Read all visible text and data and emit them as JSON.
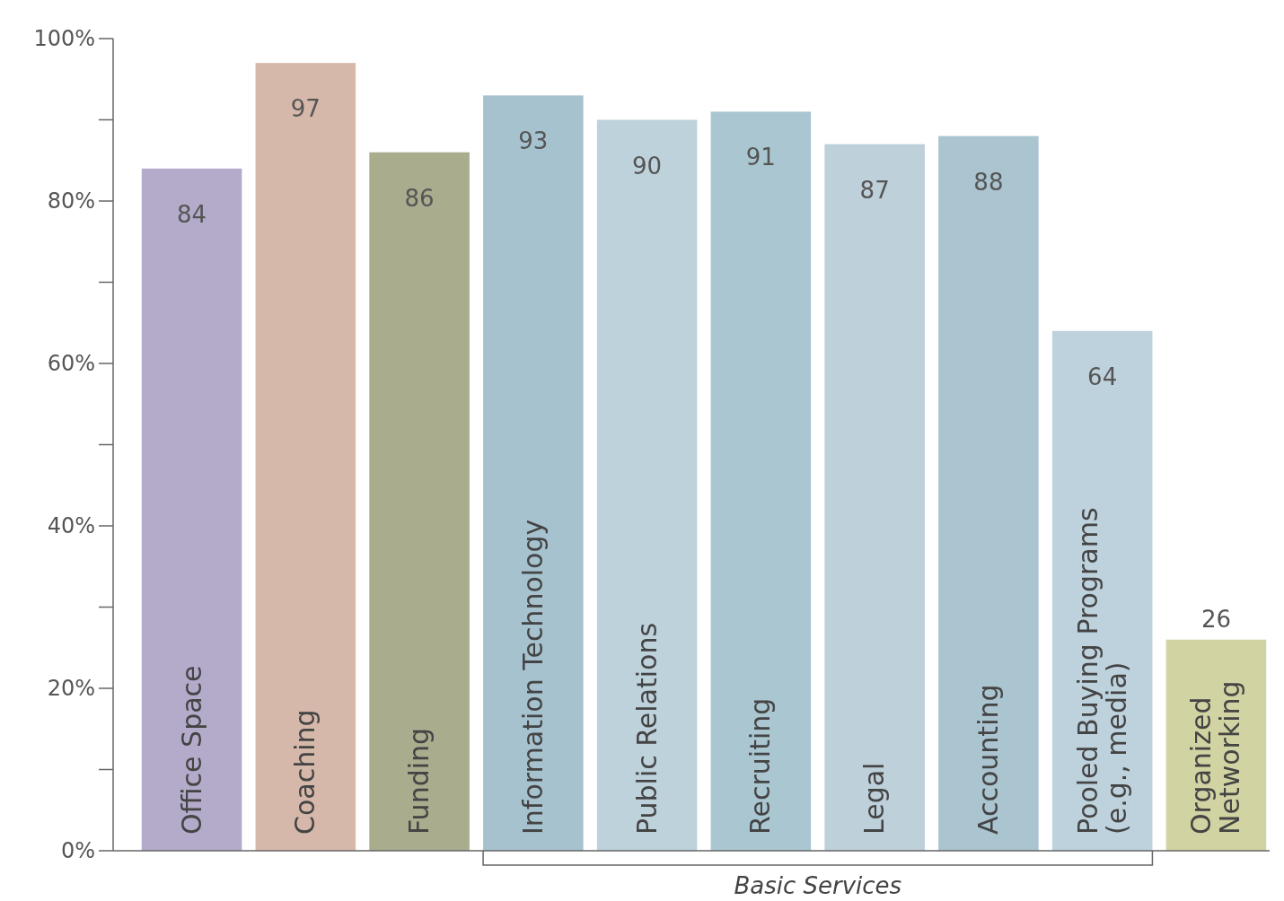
{
  "chart_data": {
    "type": "bar",
    "categories": [
      "Office Space",
      "Coaching",
      "Funding",
      "Information Technology",
      "Public Relations",
      "Recruiting",
      "Legal",
      "Accounting",
      "Pooled Buying Programs\n(e.g., media)",
      "Organized\nNetworking"
    ],
    "values": [
      84,
      97,
      86,
      93,
      90,
      91,
      87,
      88,
      64,
      26
    ],
    "colors": [
      "#b4aaca",
      "#d6b8aa",
      "#aaac8e",
      "#a6c2cf",
      "#bed2dc",
      "#aac6d1",
      "#bed0da",
      "#aac4d0",
      "#bed2dd",
      "#d2d3a2"
    ],
    "ylim": [
      0,
      100
    ],
    "yticks": [
      {
        "value": 0,
        "label": "0%"
      },
      {
        "value": 10,
        "label": null
      },
      {
        "value": 20,
        "label": "20%"
      },
      {
        "value": 30,
        "label": null
      },
      {
        "value": 40,
        "label": "40%"
      },
      {
        "value": 50,
        "label": null
      },
      {
        "value": 60,
        "label": "60%"
      },
      {
        "value": 70,
        "label": null
      },
      {
        "value": 80,
        "label": "80%"
      },
      {
        "value": 90,
        "label": null
      },
      {
        "value": 100,
        "label": "100%"
      }
    ],
    "data_labels": true,
    "grid": false,
    "annotations": [
      "Basic Services"
    ]
  }
}
